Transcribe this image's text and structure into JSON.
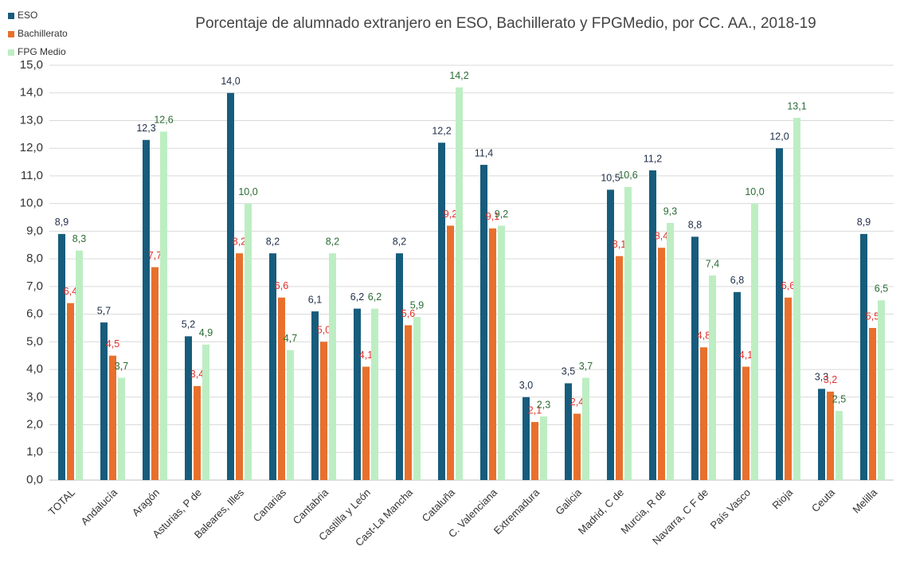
{
  "chart_data": {
    "type": "bar",
    "title": "Porcentaje de alumnado extranjero en ESO, Bachillerato y FPGMedio, por CC. AA., 2018-19",
    "categories": [
      "TOTAL",
      "Andalucía",
      "Aragón",
      "Asturias, P de",
      "Baleares, Illes",
      "Canarias",
      "Cantabria",
      "Castilla y León",
      "Cast-La Mancha",
      "Cataluña",
      "C. Valenciana",
      "Extremadura",
      "Galicia",
      "Madrid, C de",
      "Murcia, R de",
      "Navarra, C F de",
      "País Vasco",
      "Rioja",
      "Ceuta",
      "Melilla"
    ],
    "series": [
      {
        "name": "ESO",
        "color": "#175c7c",
        "label_color": "#1f2f4a",
        "values": [
          8.9,
          5.7,
          12.3,
          5.2,
          14.0,
          8.2,
          6.1,
          6.2,
          8.2,
          12.2,
          11.4,
          3.0,
          3.5,
          10.5,
          11.2,
          8.8,
          6.8,
          12.0,
          3.3,
          8.9
        ],
        "value_labels": [
          "8,9",
          "5,7",
          "12,3",
          "5,2",
          "14,0",
          "8,2",
          "6,1",
          "6,2",
          "8,2",
          "12,2",
          "11,4",
          "3,0",
          "3,5",
          "10,5",
          "11,2",
          "8,8",
          "6,8",
          "12,0",
          "3,3",
          "8,9"
        ]
      },
      {
        "name": "Bachillerato",
        "color": "#e8702c",
        "label_color": "#e0302a",
        "values": [
          6.4,
          4.5,
          7.7,
          3.4,
          8.2,
          6.6,
          5.0,
          4.1,
          5.6,
          9.2,
          9.1,
          2.1,
          2.4,
          8.1,
          8.4,
          4.8,
          4.1,
          6.6,
          3.2,
          5.5
        ],
        "value_labels": [
          "6,4",
          "4,5",
          "7,7",
          "3,4",
          "8,2",
          "6,6",
          "5,0",
          "4,1",
          "5,6",
          "9,2",
          "9,1",
          "2,1",
          "2,4",
          "8,1",
          "8,4",
          "4,8",
          "4,1",
          "6,6",
          "3,2",
          "5,5"
        ]
      },
      {
        "name": "FPG Medio",
        "color": "#bdeec3",
        "label_color": "#2b6b34",
        "values": [
          8.3,
          3.7,
          12.6,
          4.9,
          10.0,
          4.7,
          8.2,
          6.2,
          5.9,
          14.2,
          9.2,
          2.3,
          3.7,
          10.6,
          9.3,
          7.4,
          10.0,
          13.1,
          2.5,
          6.5
        ],
        "value_labels": [
          "8,3",
          "3,7",
          "12,6",
          "4,9",
          "10,0",
          "4,7",
          "8,2",
          "6,2",
          "5,9",
          "14,2",
          "9,2",
          "2,3",
          "3,7",
          "10,6",
          "9,3",
          "7,4",
          "10,0",
          "13,1",
          "2,5",
          "6,5"
        ]
      }
    ],
    "ylim": [
      0,
      15
    ],
    "yticks": [
      {
        "value": 0,
        "label": "0,0"
      },
      {
        "value": 1,
        "label": "1,0"
      },
      {
        "value": 2,
        "label": "2,0"
      },
      {
        "value": 3,
        "label": "3,0"
      },
      {
        "value": 4,
        "label": "4,0"
      },
      {
        "value": 5,
        "label": "5,0"
      },
      {
        "value": 6,
        "label": "6,0"
      },
      {
        "value": 7,
        "label": "7,0"
      },
      {
        "value": 8,
        "label": "8,0"
      },
      {
        "value": 9,
        "label": "9,0"
      },
      {
        "value": 10,
        "label": "10,0"
      },
      {
        "value": 11,
        "label": "11,0"
      },
      {
        "value": 12,
        "label": "12,0"
      },
      {
        "value": 13,
        "label": "13,0"
      },
      {
        "value": 14,
        "label": "14,0"
      },
      {
        "value": 15,
        "label": "15,0"
      }
    ],
    "grid": true,
    "legend": "top-left"
  }
}
